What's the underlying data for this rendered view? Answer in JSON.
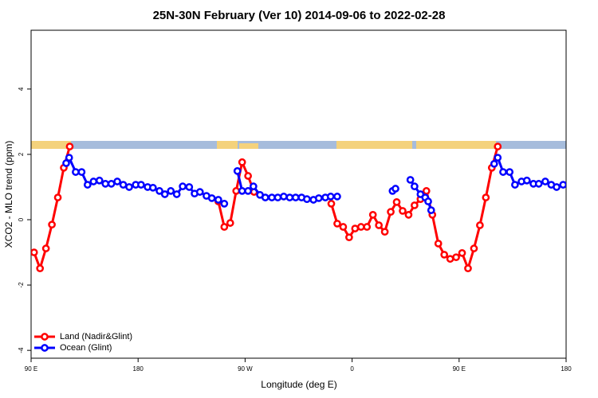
{
  "chart_data": {
    "type": "line",
    "title": "25N-30N February (Ver 10)   2014-09-06 to 2022-02-28",
    "xlabel": "Longitude (deg E)",
    "ylabel": "XCO2 - MLO trend (ppm)",
    "xlim": [
      90,
      540
    ],
    "ylim": [
      -4.24,
      5.8
    ],
    "xticks": [
      {
        "value": 90,
        "label": "90 E"
      },
      {
        "value": 180,
        "label": "180"
      },
      {
        "value": 270,
        "label": "90 W"
      },
      {
        "value": 360,
        "label": "0"
      },
      {
        "value": 450,
        "label": "90 E"
      },
      {
        "value": 540,
        "label": "180"
      }
    ],
    "yticks": [
      -4,
      -2,
      0,
      2,
      4
    ],
    "legend": "bottomleft",
    "series": [
      {
        "name": "Land (Nadir&Glint)",
        "color": "#ff0000",
        "x": [
          92.5,
          97.5,
          102.5,
          107.5,
          112.5,
          117.5,
          122.5,
          185,
          247.5,
          252.5,
          257.5,
          262.5,
          267.5,
          272.5,
          277.5,
          310,
          342.5,
          347.5,
          352.5,
          357.5,
          362.5,
          367.5,
          372.5,
          377.5,
          382.5,
          387.5,
          392.5,
          397.5,
          402.5,
          407.5,
          412.5,
          417.5,
          422.5,
          427.5,
          432.5,
          437.5,
          442.5,
          447.5,
          452.5,
          457.5,
          462.5,
          467.5,
          472.5,
          477.5,
          482.5
        ],
        "values": [
          -1.0,
          -1.49,
          -0.88,
          -0.15,
          0.68,
          1.59,
          2.24,
          null,
          0.56,
          -0.22,
          -0.1,
          0.88,
          1.76,
          1.34,
          0.85,
          null,
          0.49,
          -0.12,
          -0.22,
          -0.54,
          -0.27,
          -0.22,
          -0.22,
          0.15,
          -0.17,
          -0.37,
          0.24,
          0.54,
          0.27,
          0.15,
          0.44,
          0.63,
          0.88,
          0.15,
          -0.73,
          -1.07,
          -1.2,
          -1.15,
          -1.02,
          -1.49,
          -0.88,
          -0.17,
          0.68,
          1.59,
          2.24
        ]
      },
      {
        "name": "Ocean (Glint)",
        "color": "#0000ff",
        "x": [
          119.5,
          122,
          127.5,
          132.5,
          137.5,
          142.5,
          147.5,
          152.5,
          157.5,
          162.5,
          167.5,
          172.5,
          178,
          182.5,
          188,
          192.5,
          198,
          202.5,
          207.5,
          212.5,
          217.5,
          223,
          227.5,
          232,
          237.5,
          242,
          247.5,
          252.5,
          258,
          263.5,
          267.5,
          272.5,
          277,
          282.5,
          287,
          292.5,
          297.5,
          302.5,
          307.5,
          312.5,
          317.5,
          322,
          327.5,
          332,
          337.5,
          342,
          347.5,
          370,
          394,
          396.5,
          403,
          409,
          412.5,
          417.5,
          421.5,
          424,
          426.5,
          453,
          479.5,
          482.5,
          487,
          492.5,
          497,
          502.5,
          507,
          512.5,
          517,
          522.5,
          527.5,
          532,
          537.5
        ],
        "values": [
          1.73,
          1.9,
          1.46,
          1.46,
          1.07,
          1.17,
          1.2,
          1.1,
          1.1,
          1.17,
          1.07,
          1.0,
          1.07,
          1.07,
          1.0,
          0.98,
          0.88,
          0.78,
          0.88,
          0.78,
          1.02,
          1.0,
          0.8,
          0.85,
          0.73,
          0.66,
          0.61,
          0.49,
          null,
          1.49,
          0.88,
          0.88,
          1.02,
          0.76,
          0.68,
          0.68,
          0.68,
          0.71,
          0.68,
          0.68,
          0.68,
          0.63,
          0.61,
          0.66,
          0.68,
          0.71,
          0.71,
          null,
          0.88,
          0.95,
          null,
          1.22,
          1.02,
          0.78,
          0.68,
          0.56,
          0.29,
          null,
          1.71,
          1.9,
          1.46,
          1.46,
          1.07,
          1.17,
          1.2,
          1.1,
          1.1,
          1.17,
          1.07,
          1.0,
          1.07
        ]
      }
    ]
  }
}
